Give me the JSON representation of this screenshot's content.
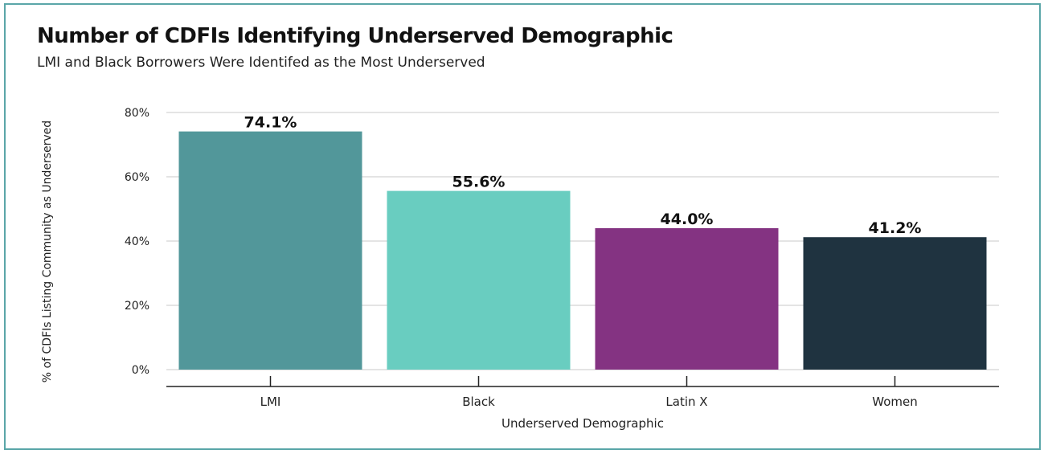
{
  "header": {
    "title": "Number of CDFIs Identifying Underserved Demographic",
    "subtitle": "LMI and Black Borrowers Were Identifed as the Most Underserved"
  },
  "chart_data": {
    "type": "bar",
    "title": "Number of CDFIs Identifying Underserved Demographic",
    "subtitle": "LMI and Black Borrowers Were Identifed as the Most Underserved",
    "xlabel": "Underserved Demographic",
    "ylabel": "% of CDFIs Listing Community as Underserved",
    "categories": [
      "LMI",
      "Black",
      "Latin X",
      "Women"
    ],
    "values": [
      74.1,
      55.6,
      44.0,
      41.2
    ],
    "value_labels": [
      "74.1%",
      "55.6%",
      "44.0%",
      "41.2%"
    ],
    "colors": [
      "#52979a",
      "#69cdc0",
      "#843382",
      "#1f3340"
    ],
    "ylim": [
      0,
      80
    ],
    "yticks": [
      0,
      20,
      40,
      60,
      80
    ],
    "ytick_labels": [
      "0%",
      "20%",
      "40%",
      "60%",
      "80%"
    ],
    "grid": true,
    "legend": "none"
  }
}
